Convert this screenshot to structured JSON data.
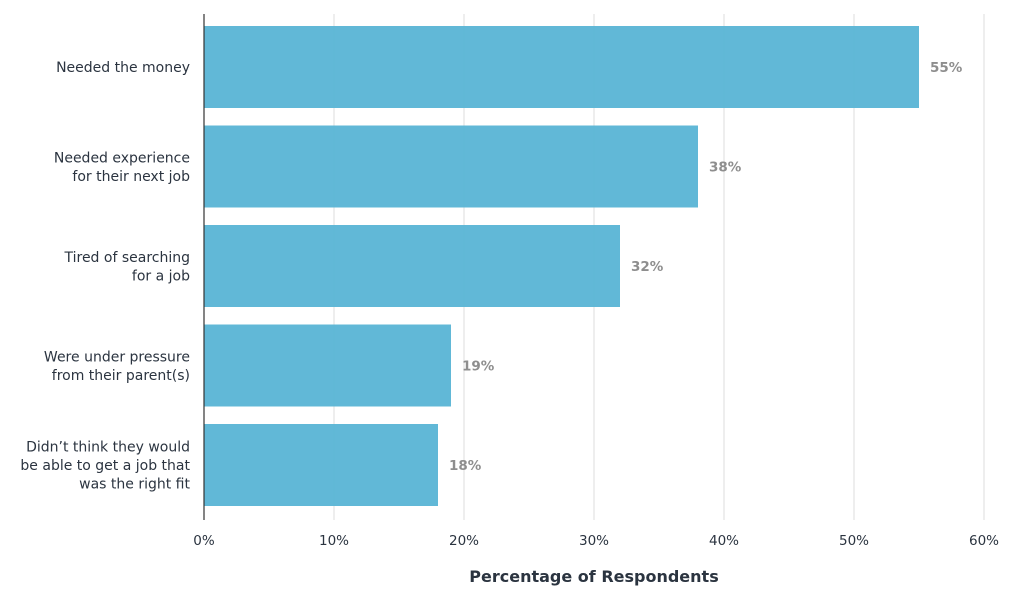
{
  "chart_data": {
    "type": "bar",
    "orientation": "horizontal",
    "categories": [
      "Needed the money",
      "Needed experience\nfor their next job",
      "Tired of searching\nfor a job",
      "Were under pressure\nfrom their parent(s)",
      "Didn’t think they would\nbe able to get a job that\nwas the right fit"
    ],
    "values": [
      55,
      38,
      32,
      19,
      18
    ],
    "value_labels": [
      "55%",
      "38%",
      "32%",
      "19%",
      "18%"
    ],
    "xlabel": "Percentage of Respondents",
    "ylabel": "",
    "xlim": [
      0,
      60
    ],
    "x_ticks": [
      0,
      10,
      20,
      30,
      40,
      50,
      60
    ],
    "x_tick_labels": [
      "0%",
      "10%",
      "20%",
      "30%",
      "40%",
      "50%",
      "60%"
    ],
    "grid": "vertical",
    "legend": "none",
    "colors": {
      "bar": "#5cb6d6",
      "grid": "#dddddd",
      "axis": "#333333",
      "data_label": "#8e8e8e",
      "text": "#2b3440"
    }
  }
}
